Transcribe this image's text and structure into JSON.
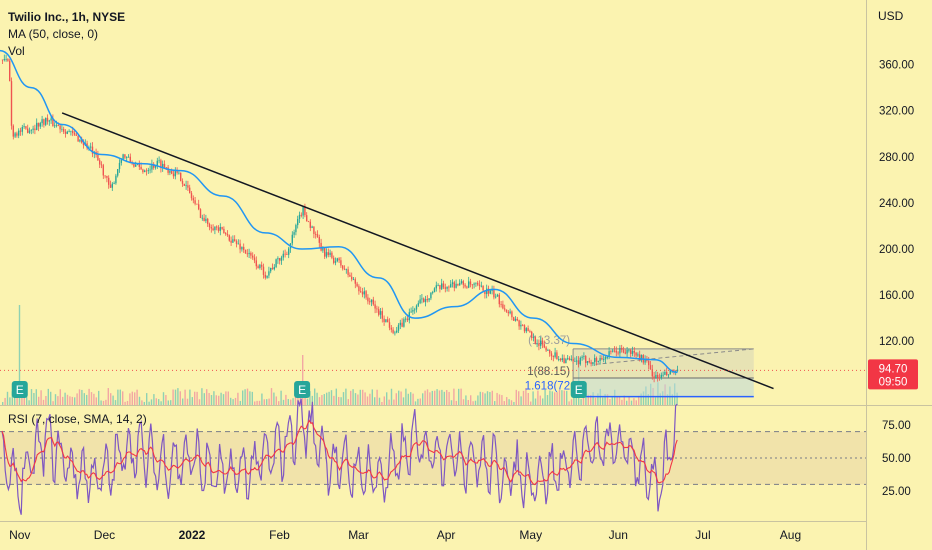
{
  "header": {
    "title": "Twilio Inc., 1h, NYSE",
    "ma_legend": "MA (50, close, 0)",
    "vol_legend": "Vol",
    "rsi_legend": "RSI (7, close, SMA, 14, 2)",
    "currency": "USD"
  },
  "price_badge": {
    "price": "94.70",
    "countdown": "09:50",
    "color": "#f23645"
  },
  "colors": {
    "background": "#fbf3b0",
    "candle_up": "#26a69a",
    "candle_down": "#ef5350",
    "ma": "#2196f3",
    "trendline": "#131722",
    "rsi": "#7e57c2",
    "rsi_ma": "#f23645",
    "fib_line": "#2962ff",
    "earnings_marker": "#26a69a"
  },
  "chart_data": [
    {
      "type": "candlestick",
      "title": "Twilio Inc., 1h, NYSE",
      "ylabel": "USD",
      "ylim": [
        80,
        380
      ],
      "y_ticks": [
        120,
        160,
        200,
        240,
        280,
        320,
        360
      ],
      "y_tick_labels": [
        "120.00",
        "160.00",
        "200.00",
        "240.00",
        "280.00",
        "320.00",
        "360.00"
      ],
      "x_ticks": [
        "Nov",
        "Dec",
        "2022",
        "Feb",
        "Mar",
        "Apr",
        "May",
        "Jun",
        "Jul",
        "Aug"
      ],
      "last_price": 94.7,
      "ma_label": "MA (50, close, 0)",
      "price_path": [
        [
          "2021-10-25",
          365
        ],
        [
          "2021-10-28",
          362
        ],
        [
          "2021-10-29",
          300
        ],
        [
          "2021-11-05",
          305
        ],
        [
          "2021-11-10",
          312
        ],
        [
          "2021-11-16",
          305
        ],
        [
          "2021-11-22",
          295
        ],
        [
          "2021-11-26",
          286
        ],
        [
          "2021-11-30",
          270
        ],
        [
          "2021-12-03",
          250
        ],
        [
          "2021-12-07",
          282
        ],
        [
          "2021-12-14",
          268
        ],
        [
          "2021-12-20",
          275
        ],
        [
          "2021-12-28",
          262
        ],
        [
          "2022-01-05",
          225
        ],
        [
          "2022-01-12",
          214
        ],
        [
          "2022-01-19",
          200
        ],
        [
          "2022-01-27",
          178
        ],
        [
          "2022-02-04",
          200
        ],
        [
          "2022-02-09",
          235
        ],
        [
          "2022-02-16",
          198
        ],
        [
          "2022-02-22",
          188
        ],
        [
          "2022-03-01",
          166
        ],
        [
          "2022-03-08",
          145
        ],
        [
          "2022-03-14",
          128
        ],
        [
          "2022-03-21",
          150
        ],
        [
          "2022-03-28",
          165
        ],
        [
          "2022-04-04",
          170
        ],
        [
          "2022-04-11",
          168
        ],
        [
          "2022-04-18",
          160
        ],
        [
          "2022-04-25",
          140
        ],
        [
          "2022-05-02",
          122
        ],
        [
          "2022-05-09",
          108
        ],
        [
          "2022-05-16",
          101
        ],
        [
          "2022-05-20",
          104
        ],
        [
          "2022-05-24",
          103
        ],
        [
          "2022-06-01",
          112
        ],
        [
          "2022-06-06",
          110
        ],
        [
          "2022-06-10",
          104
        ],
        [
          "2022-06-14",
          88
        ],
        [
          "2022-06-17",
          90
        ],
        [
          "2022-06-22",
          94.7
        ]
      ],
      "ma_path": [
        [
          "2021-10-25",
          372
        ],
        [
          "2021-11-05",
          340
        ],
        [
          "2021-11-16",
          308
        ],
        [
          "2021-11-30",
          282
        ],
        [
          "2021-12-14",
          274
        ],
        [
          "2021-12-28",
          268
        ],
        [
          "2022-01-12",
          246
        ],
        [
          "2022-01-27",
          214
        ],
        [
          "2022-02-09",
          200
        ],
        [
          "2022-02-22",
          202
        ],
        [
          "2022-03-08",
          175
        ],
        [
          "2022-03-21",
          140
        ],
        [
          "2022-04-04",
          150
        ],
        [
          "2022-04-18",
          165
        ],
        [
          "2022-05-02",
          140
        ],
        [
          "2022-05-16",
          118
        ],
        [
          "2022-06-01",
          106
        ],
        [
          "2022-06-14",
          104
        ],
        [
          "2022-06-22",
          93
        ]
      ],
      "trendline": [
        [
          "2021-11-16",
          318
        ],
        [
          "2022-07-26",
          79
        ]
      ],
      "fib_box": {
        "x": [
          "2022-05-16",
          "2022-07-19"
        ],
        "levels": [
          {
            "value": 113.37,
            "label": "(113.37)",
            "color": "#9c9c9c"
          },
          {
            "value": 88.15,
            "label": "1(88.15)",
            "color": "#555555"
          },
          {
            "value": 72,
            "label": "1.618(72",
            "color": "#2962ff"
          }
        ]
      },
      "earnings_markers": [
        {
          "date": "2021-11-01",
          "label": "E"
        },
        {
          "date": "2022-02-09",
          "label": "E"
        },
        {
          "date": "2022-05-18",
          "label": "E"
        }
      ]
    },
    {
      "type": "line",
      "title": "RSI (7, close, SMA, 14, 2)",
      "ylim": [
        0,
        100
      ],
      "y_ticks": [
        25,
        50,
        75
      ],
      "y_tick_labels": [
        "25.00",
        "50.00",
        "75.00"
      ],
      "band": [
        30,
        70
      ],
      "series": [
        {
          "name": "RSI"
        },
        {
          "name": "SMA"
        }
      ],
      "rsi_points": [
        [
          "2021-10-25",
          45
        ],
        [
          "2021-11-01",
          30
        ],
        [
          "2021-11-10",
          65
        ],
        [
          "2021-11-20",
          40
        ],
        [
          "2021-12-01",
          35
        ],
        [
          "2021-12-10",
          60
        ],
        [
          "2021-12-20",
          45
        ],
        [
          "2022-01-01",
          50
        ],
        [
          "2022-01-10",
          35
        ],
        [
          "2022-01-20",
          40
        ],
        [
          "2022-02-01",
          55
        ],
        [
          "2022-02-09",
          80
        ],
        [
          "2022-02-20",
          45
        ],
        [
          "2022-03-01",
          40
        ],
        [
          "2022-03-10",
          35
        ],
        [
          "2022-03-20",
          60
        ],
        [
          "2022-04-01",
          55
        ],
        [
          "2022-04-10",
          50
        ],
        [
          "2022-04-20",
          40
        ],
        [
          "2022-05-01",
          35
        ],
        [
          "2022-05-10",
          40
        ],
        [
          "2022-05-20",
          55
        ],
        [
          "2022-06-01",
          60
        ],
        [
          "2022-06-10",
          45
        ],
        [
          "2022-06-15",
          20
        ],
        [
          "2022-06-22",
          80
        ]
      ]
    }
  ]
}
